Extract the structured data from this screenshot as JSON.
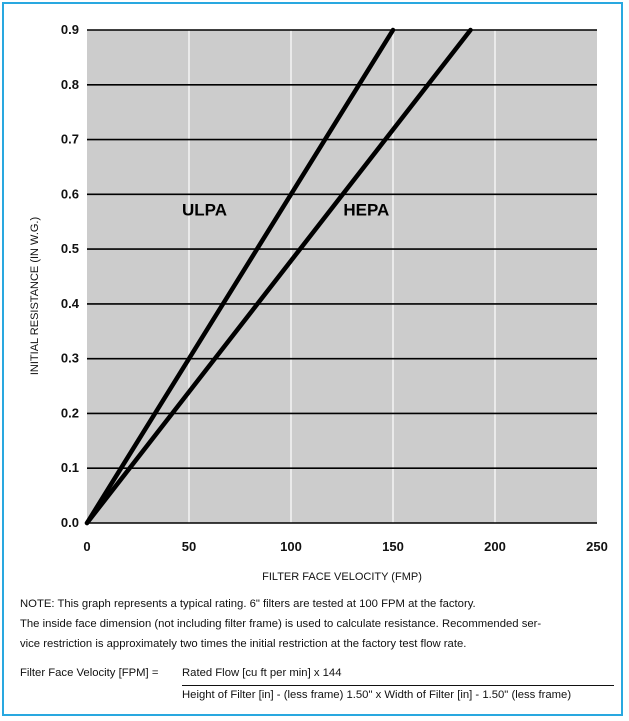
{
  "chart_data": {
    "type": "line",
    "xlabel": "FILTER FACE VELOCITY (FMP)",
    "ylabel": "INITIAL RESISTANCE (IN W.G.)",
    "xlim": [
      0,
      250
    ],
    "ylim": [
      0,
      0.9
    ],
    "x_ticks": [
      "0",
      "50",
      "100",
      "150",
      "200",
      "250"
    ],
    "y_ticks": [
      "0.0",
      "0.1",
      "0.2",
      "0.3",
      "0.4",
      "0.5",
      "0.6",
      "0.7",
      "0.8",
      "0.9"
    ],
    "grid": true,
    "series": [
      {
        "name": "ULPA",
        "x": [
          0,
          150
        ],
        "y": [
          0,
          0.9
        ]
      },
      {
        "name": "HEPA",
        "x": [
          0,
          188
        ],
        "y": [
          0,
          0.9
        ]
      }
    ],
    "plot_background": "#cccccc",
    "line_color": "#000000"
  },
  "note": {
    "line1": "NOTE: This graph represents a typical rating. 6\" filters are tested at 100 FPM at the factory.",
    "line2": "The inside face dimension (not including filter frame) is used to calculate resistance. Recommended ser-",
    "line3": "vice restriction is approximately two times the initial restriction at the factory test flow rate."
  },
  "formula": {
    "lhs": "Filter Face Velocity [FPM] =",
    "numerator": "Rated Flow [cu ft per min] x 144",
    "denominator": "Height of Filter [in] - (less frame) 1.50\" x Width of Filter [in] - 1.50\" (less frame)"
  },
  "colors": {
    "border": "#29a8e0"
  }
}
